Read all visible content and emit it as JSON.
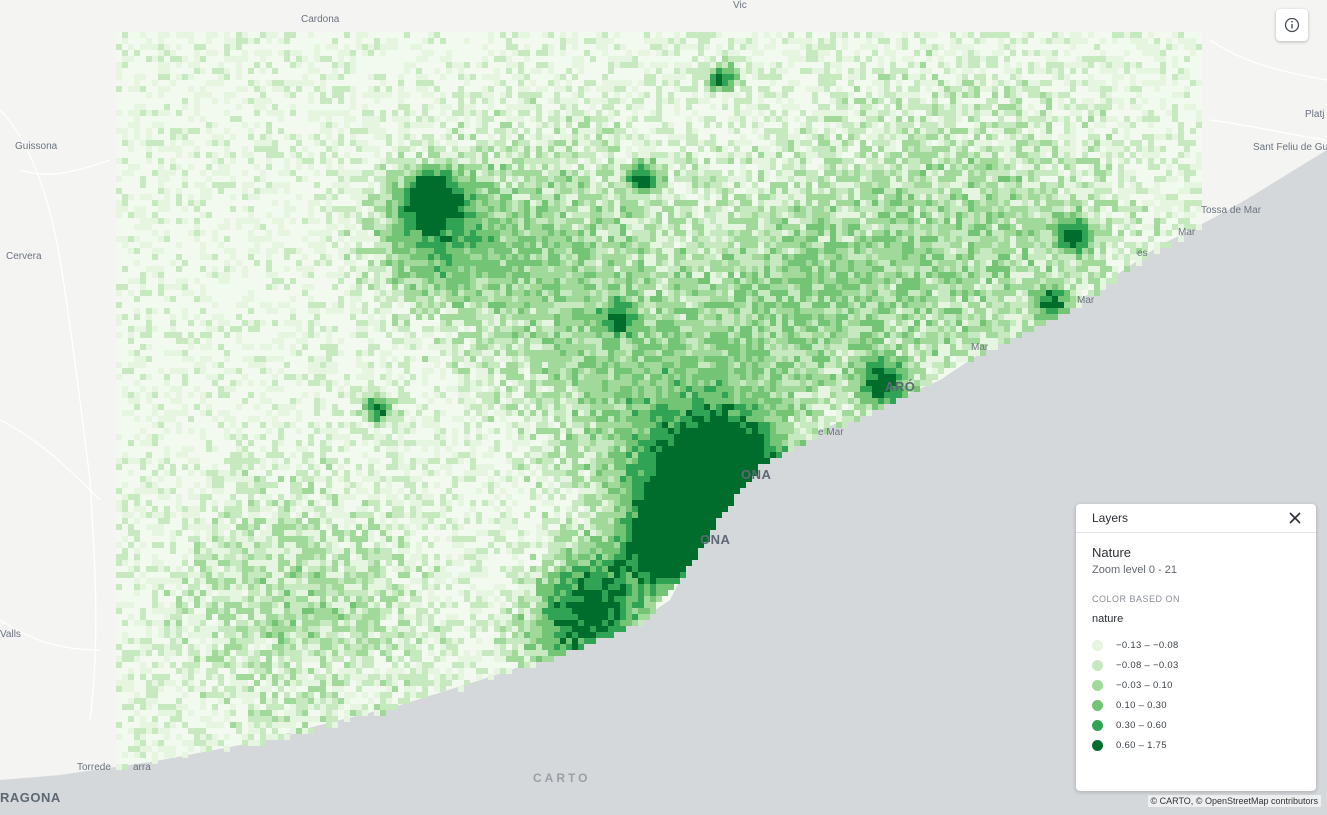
{
  "places": [
    {
      "name": "Cardona",
      "big": false
    },
    {
      "name": "Vic",
      "big": false
    },
    {
      "name": "Guissona",
      "big": false
    },
    {
      "name": "Cervera",
      "big": false
    },
    {
      "name": "Sant Feliu de Gu",
      "big": false
    },
    {
      "name": "Tossa de Mar",
      "big": false
    },
    {
      "name": "Platj",
      "big": false
    },
    {
      "name": "ARÓ",
      "big": true
    },
    {
      "name": "ONA",
      "big": true
    },
    {
      "name": "ONA",
      "big": true
    },
    {
      "name": "Mar",
      "big": false
    },
    {
      "name": "Mar",
      "big": false
    },
    {
      "name": "e Mar",
      "big": false
    },
    {
      "name": "Mar",
      "big": false
    },
    {
      "name": "es",
      "big": false
    },
    {
      "name": "Torrede",
      "big": false
    },
    {
      "name": "arra",
      "big": false
    },
    {
      "name": "RAGONA",
      "big": true
    },
    {
      "name": "Valls",
      "big": false
    }
  ],
  "map": {
    "logo": "CARTO",
    "attribution": "© CARTO, © OpenStreetMap contributors",
    "info_icon": "info-icon"
  },
  "panel": {
    "title": "Layers",
    "close_icon": "close-icon",
    "layer_name": "Nature",
    "zoom_text": "Zoom level 0 - 21",
    "color_based_on": "COLOR BASED ON",
    "attribute": "nature",
    "legend": [
      {
        "label": "−0.13 – −0.08",
        "color": "#e5f5e0"
      },
      {
        "label": "−0.08 – −0.03",
        "color": "#c7e9c0"
      },
      {
        "label": "−0.03 – 0.10",
        "color": "#a1d99b"
      },
      {
        "label": "0.10 – 0.30",
        "color": "#74c476"
      },
      {
        "label": "0.30 – 0.60",
        "color": "#31a354"
      },
      {
        "label": "0.60 – 1.75",
        "color": "#006d2c"
      }
    ]
  }
}
